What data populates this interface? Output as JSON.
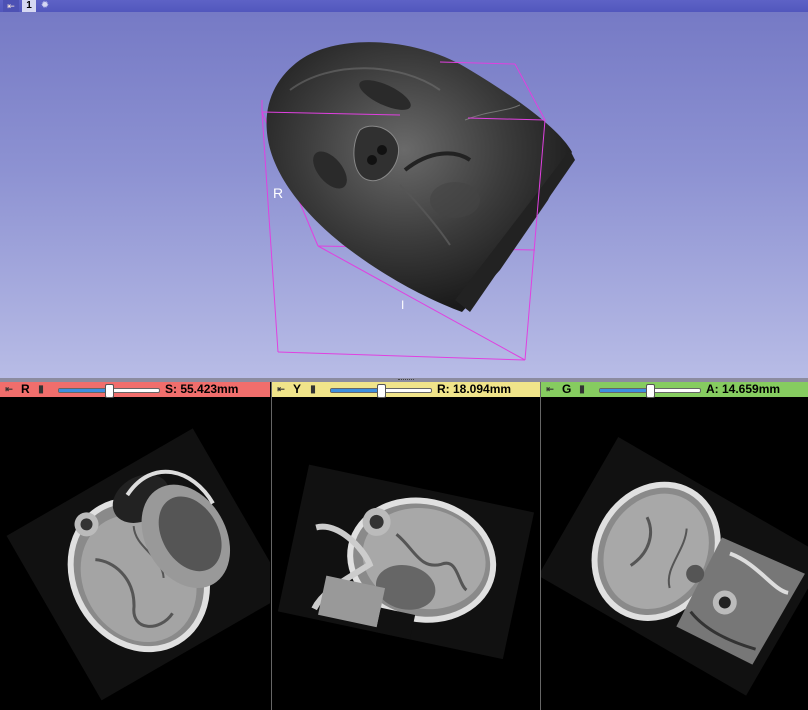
{
  "view3d": {
    "pin_icon": "pin-icon",
    "layout_number": "1",
    "settings_icon": "gear-icon",
    "orientation_labels": {
      "right": "R",
      "inferior": "I"
    },
    "background_top": "#7478c4",
    "background_bottom": "#b8bce6",
    "bounding_box_color": "#e040e0"
  },
  "slices": [
    {
      "name": "R",
      "color": "#f06e6c",
      "offset_label": "S: 55.423mm",
      "slider_fraction": 0.5
    },
    {
      "name": "Y",
      "color": "#f0e48a",
      "offset_label": "R: 18.094mm",
      "slider_fraction": 0.5
    },
    {
      "name": "G",
      "color": "#86cc60",
      "offset_label": "A: 14.659mm",
      "slider_fraction": 0.5
    }
  ]
}
